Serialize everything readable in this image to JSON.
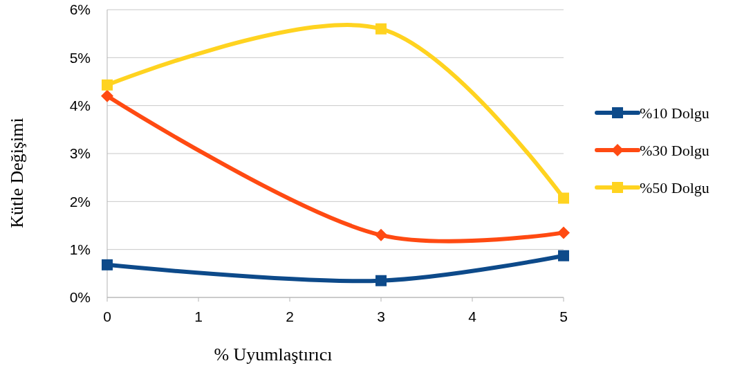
{
  "chart_data": {
    "type": "line",
    "xlabel": "% Uyumlaştırıcı",
    "ylabel": "Kütle Değişimi",
    "x": [
      0,
      3,
      5
    ],
    "xlim": [
      0,
      5
    ],
    "xticks": [
      0,
      1,
      2,
      3,
      4,
      5
    ],
    "ylim": [
      0,
      6
    ],
    "yticks": [
      {
        "value": 0,
        "label": "0%"
      },
      {
        "value": 1,
        "label": "1%"
      },
      {
        "value": 2,
        "label": "2%"
      },
      {
        "value": 3,
        "label": "3%"
      },
      {
        "value": 4,
        "label": "4%"
      },
      {
        "value": 5,
        "label": "5%"
      },
      {
        "value": 6,
        "label": "6%"
      }
    ],
    "grid": "y",
    "legend": "right",
    "series": [
      {
        "name": "%10 Dolgu",
        "color": "#0d4a8a",
        "values": [
          0.68,
          0.35,
          0.87
        ],
        "marker": "square"
      },
      {
        "name": "%30 Dolgu",
        "color": "#ff4a12",
        "values": [
          4.2,
          1.3,
          1.35
        ],
        "marker": "diamond"
      },
      {
        "name": "%50 Dolgu",
        "color": "#ffd320",
        "values": [
          4.43,
          5.6,
          2.07
        ],
        "marker": "square"
      }
    ]
  }
}
